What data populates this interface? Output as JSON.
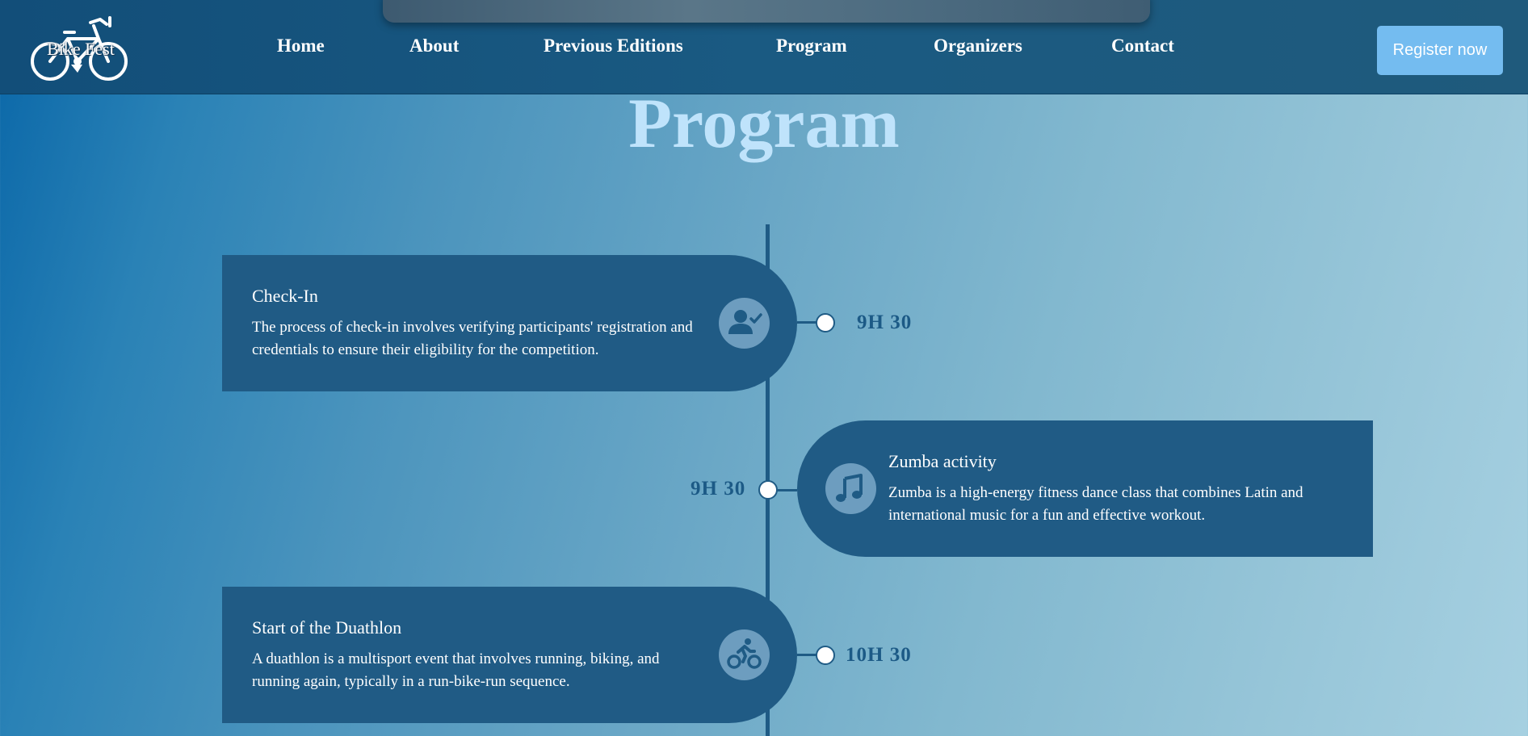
{
  "header": {
    "logo_text": "Bike Fest",
    "nav": [
      {
        "label": "Home"
      },
      {
        "label": "About"
      },
      {
        "label": "Previous Editions"
      },
      {
        "label": "Program"
      },
      {
        "label": "Organizers"
      },
      {
        "label": "Contact"
      }
    ],
    "register_label": "Register now"
  },
  "program": {
    "title": "Program",
    "events": [
      {
        "title": "Check-In",
        "description": "The process of check-in involves verifying participants' registration and credentials to ensure their eligibility for the competition.",
        "time": "9H 30",
        "icon": "user-check-icon",
        "side": "left"
      },
      {
        "title": "Zumba activity",
        "description": "Zumba is a high-energy fitness dance class that combines Latin and international music for a fun and effective workout.",
        "time": "9H 30",
        "icon": "music-note-icon",
        "side": "right"
      },
      {
        "title": "Start of the Duathlon",
        "description": "A duathlon is a multisport event that involves running, biking, and running again, typically in a run-bike-run sequence.",
        "time": "10H 30",
        "icon": "cyclist-icon",
        "side": "left"
      }
    ]
  },
  "colors": {
    "header": "#1a5a82",
    "card": "#205b85",
    "title": "#bfe3fb",
    "register": "#74bcf0",
    "time": "#1c5a86"
  }
}
